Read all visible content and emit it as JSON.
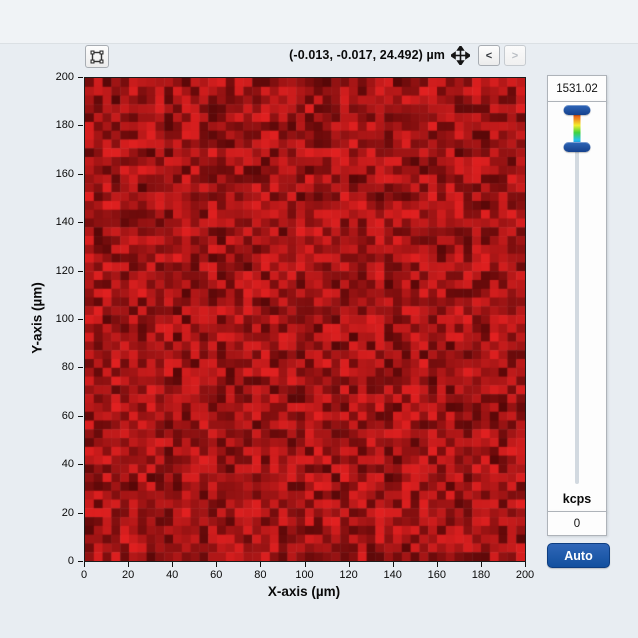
{
  "toolbar": {
    "coordinates_readout": "(-0.013, -0.017, 24.492) µm",
    "prev_label": "<",
    "next_label": ">"
  },
  "chart_data": {
    "type": "heatmap",
    "title": "",
    "xlabel": "X-axis (µm)",
    "ylabel": "Y-axis (µm)",
    "x_range": [
      0,
      200
    ],
    "y_range": [
      0,
      200
    ],
    "x_ticks": [
      0,
      20,
      40,
      60,
      80,
      100,
      120,
      140,
      160,
      180,
      200
    ],
    "y_ticks": [
      0,
      20,
      40,
      60,
      80,
      100,
      120,
      140,
      160,
      180,
      200
    ],
    "grid": {
      "cols": 50,
      "rows": 55,
      "seed": 1531
    },
    "values_description": "spatially uncorrelated photon-count noise; every ~4 µm pixel is an independent random intensity rendered as a shade of red (dark red = low counts, bright red = high counts)",
    "value_units": "kcps",
    "display_value_range": [
      0,
      1531.02
    ],
    "cell_color_dark": "#570707",
    "cell_color_bright": "#e12020",
    "grid_lines": false,
    "legend": "none (vertical colour-scale slider at right)"
  },
  "colorbar": {
    "max_value": "1531.02",
    "min_value": "0",
    "units_label": "kcps",
    "auto_label": "Auto",
    "accent": "#12509e",
    "handle_color_top": "#2f66b8",
    "handle_color_bottom": "#15418d",
    "gradient": [
      "#e02c12",
      "#f07f1e",
      "#f2ee2c",
      "#3fd23f",
      "#27c3ea",
      "#2057c8"
    ]
  }
}
